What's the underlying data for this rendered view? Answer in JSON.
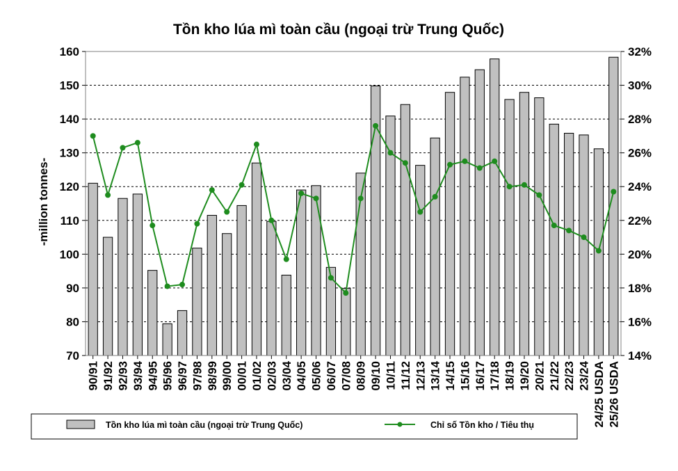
{
  "chart_data": {
    "type": "bar",
    "title": "Tồn kho lúa mì toàn cầu (ngoại trừ Trung Quốc)",
    "ylabel": "-million tonnes-",
    "ylim": [
      70,
      160
    ],
    "yticks": [
      70,
      80,
      90,
      100,
      110,
      120,
      130,
      140,
      150,
      160
    ],
    "y2lim": [
      14,
      32
    ],
    "y2ticks": [
      "14%",
      "16%",
      "18%",
      "20%",
      "22%",
      "24%",
      "26%",
      "28%",
      "30%",
      "32%"
    ],
    "grid": true,
    "legend_position": "bottom",
    "categories": [
      "90/91",
      "91/92",
      "92/93",
      "93/94",
      "94/95",
      "95/96",
      "96/97",
      "97/98",
      "98/99",
      "99/00",
      "00/01",
      "01/02",
      "02/03",
      "03/04",
      "04/05",
      "05/06",
      "06/07",
      "07/08",
      "08/09",
      "09/10",
      "10/11",
      "11/12",
      "12/13",
      "13/14",
      "14/15",
      "15/16",
      "16/17",
      "17/18",
      "18/19",
      "19/20",
      "20/21",
      "21/22",
      "22/23",
      "23/24",
      "24/25 USDA",
      "25/26 USDA"
    ],
    "series": [
      {
        "name": "Tồn kho lúa mì toàn cầu (ngoại trừ Trung Quốc)",
        "type": "bar",
        "color": "#c0c0c0",
        "values": [
          121,
          105,
          116.5,
          117.8,
          95.2,
          79.4,
          83.3,
          101.8,
          111.5,
          106.1,
          114.4,
          127,
          109.7,
          93.8,
          119,
          120.3,
          96.1,
          89.9,
          124,
          149.8,
          140.9,
          144.3,
          126.3,
          134.4,
          147.9,
          152.4,
          154.6,
          157.8,
          145.8,
          147.9,
          146.3,
          138.5,
          135.8,
          135.3,
          131.2,
          158.3
        ]
      },
      {
        "name": "Chỉ số Tồn kho / Tiêu thụ",
        "type": "line",
        "axis": "right",
        "color": "#1e8c1e",
        "values": [
          27.0,
          23.5,
          26.3,
          26.6,
          21.7,
          18.1,
          18.2,
          21.8,
          23.8,
          22.5,
          24.1,
          26.5,
          22.0,
          19.7,
          23.6,
          23.3,
          18.6,
          17.7,
          23.3,
          27.6,
          26.0,
          25.4,
          22.5,
          23.4,
          25.3,
          25.5,
          25.1,
          25.5,
          24.0,
          24.1,
          23.5,
          21.7,
          21.4,
          21.0,
          20.2,
          23.7
        ]
      }
    ]
  }
}
